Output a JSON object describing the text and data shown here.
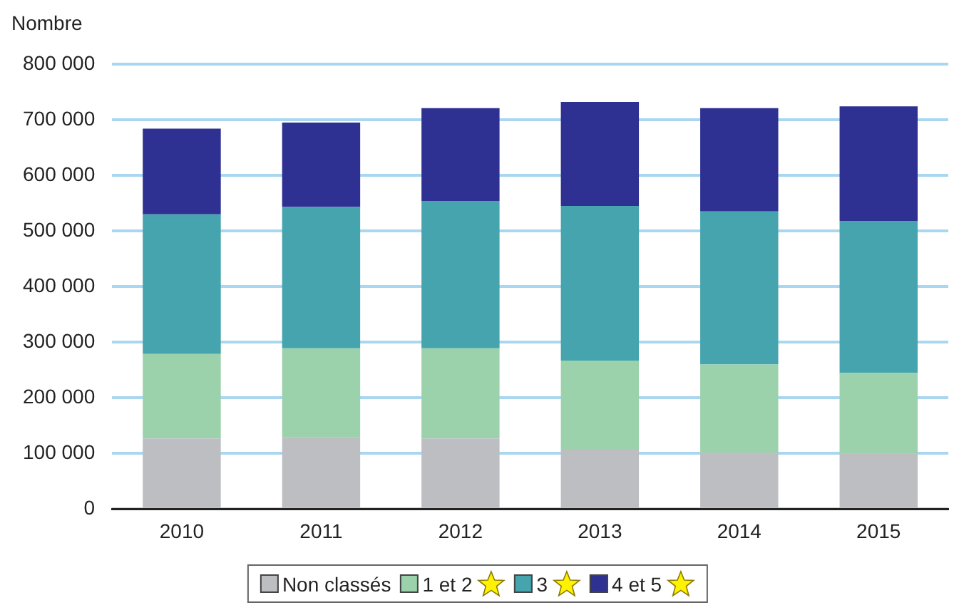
{
  "chart_data": {
    "type": "bar",
    "stacked": true,
    "ylabel": "Nombre",
    "categories": [
      "2010",
      "2011",
      "2012",
      "2013",
      "2014",
      "2015"
    ],
    "series": [
      {
        "name": "Non classés",
        "color": "#bdbec2",
        "values": [
          127000,
          129000,
          127000,
          107000,
          101000,
          100000
        ]
      },
      {
        "name": "1 et 2",
        "color": "#9bd1ab",
        "values": [
          152000,
          160000,
          162000,
          160000,
          159000,
          145000
        ]
      },
      {
        "name": "3",
        "color": "#45a4ae",
        "values": [
          251000,
          254000,
          265000,
          278000,
          275000,
          273000
        ]
      },
      {
        "name": "4 et 5",
        "color": "#2e3192",
        "values": [
          154000,
          152000,
          167000,
          187000,
          186000,
          206000
        ]
      }
    ],
    "ylim": [
      0,
      800000
    ],
    "yticks": [
      {
        "value": 0,
        "label": "0"
      },
      {
        "value": 100000,
        "label": "100 000"
      },
      {
        "value": 200000,
        "label": "200 000"
      },
      {
        "value": 300000,
        "label": "300 000"
      },
      {
        "value": 400000,
        "label": "400 000"
      },
      {
        "value": 500000,
        "label": "500 000"
      },
      {
        "value": 600000,
        "label": "600 000"
      },
      {
        "value": 700000,
        "label": "700 000"
      },
      {
        "value": 800000,
        "label": "800 000"
      }
    ],
    "grid": "y",
    "legend": "bottom"
  }
}
